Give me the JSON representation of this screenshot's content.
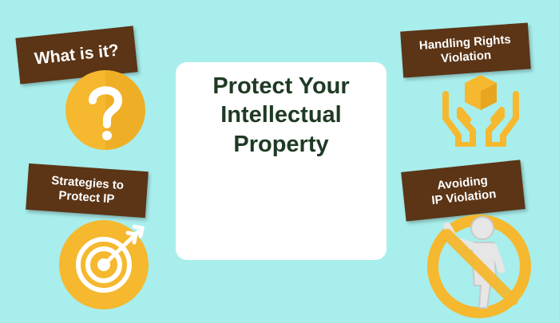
{
  "card": {
    "title_lines": [
      "Protect Your",
      "Intellectual",
      "Property"
    ]
  },
  "banners": {
    "what_is_it": "What is it?",
    "handling": [
      "Handling Rights",
      "Violation"
    ],
    "strategies": [
      "Strategies to",
      "Protect IP"
    ],
    "avoiding": [
      "Avoiding",
      "IP Violation"
    ]
  },
  "icons": {
    "question": "question-mark-icon",
    "hands": "hands-holding-box-icon",
    "target": "target-arrow-icon",
    "stop": "stop-person-icon"
  },
  "colors": {
    "background": "#a8eeec",
    "banner": "#5b3516",
    "title": "#1f3a24",
    "gold": "#f5b82e"
  }
}
